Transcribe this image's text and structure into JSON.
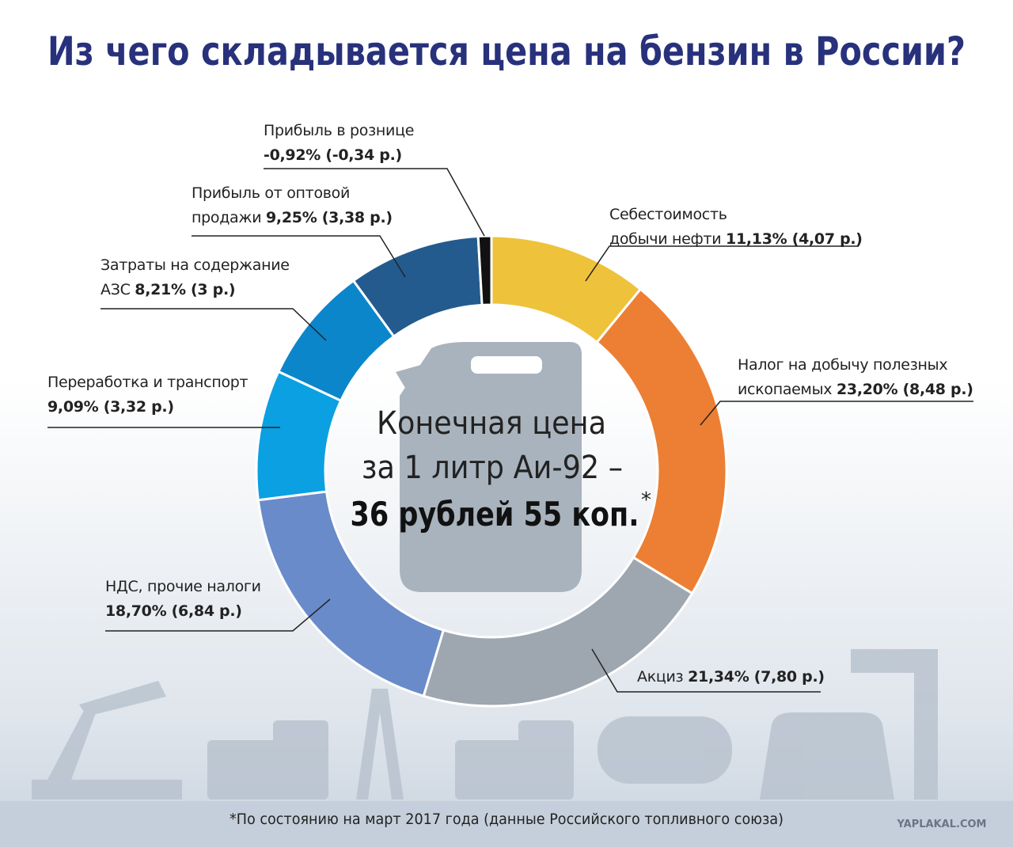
{
  "chart_data": {
    "type": "donut",
    "title": "Из чего складывается цена на бензин в России?",
    "center_lines": [
      "Конечная цена",
      "за 1 литр Аи-92 –",
      "36 рублей 55 коп.",
      "*"
    ],
    "categories": [
      "Себестоимость добычи нефти",
      "Налог на добычу полезных ископаемых",
      "Акциз",
      "НДС, прочие налоги",
      "Переработка и транспорт",
      "Затраты на содержание АЗС",
      "Прибыль от оптовой продажи",
      "Прибыль в рознице"
    ],
    "values": [
      11.13,
      23.2,
      21.34,
      18.7,
      9.09,
      8.21,
      9.25,
      -0.92
    ],
    "value_labels": [
      "11,13%",
      "23,20%",
      "21,34%",
      "18,70%",
      "9,09%",
      "8,21%",
      "9,25%",
      "-0,92%"
    ],
    "rub_values": [
      4.07,
      8.48,
      7.8,
      6.84,
      3.32,
      3,
      3.38,
      -0.34
    ],
    "rub_labels": [
      "(4,07 р.)",
      "(8,48 р.)",
      "(7,80 р.)",
      "(6,84 р.)",
      "(3,32 р.)",
      "(3 р.)",
      "(3,38 р.)",
      "(-0,34 р.)"
    ],
    "colors": [
      "#efc23b",
      "#ec7f33",
      "#9ea7b0",
      "#6a8bca",
      "#0aa0e2",
      "#0b86cb",
      "#235b8e",
      "#111111"
    ],
    "footnote": "*По состоянию на март 2017 года (данные Российского топливного союза)",
    "watermark": "YAPLAKAL.COM"
  }
}
